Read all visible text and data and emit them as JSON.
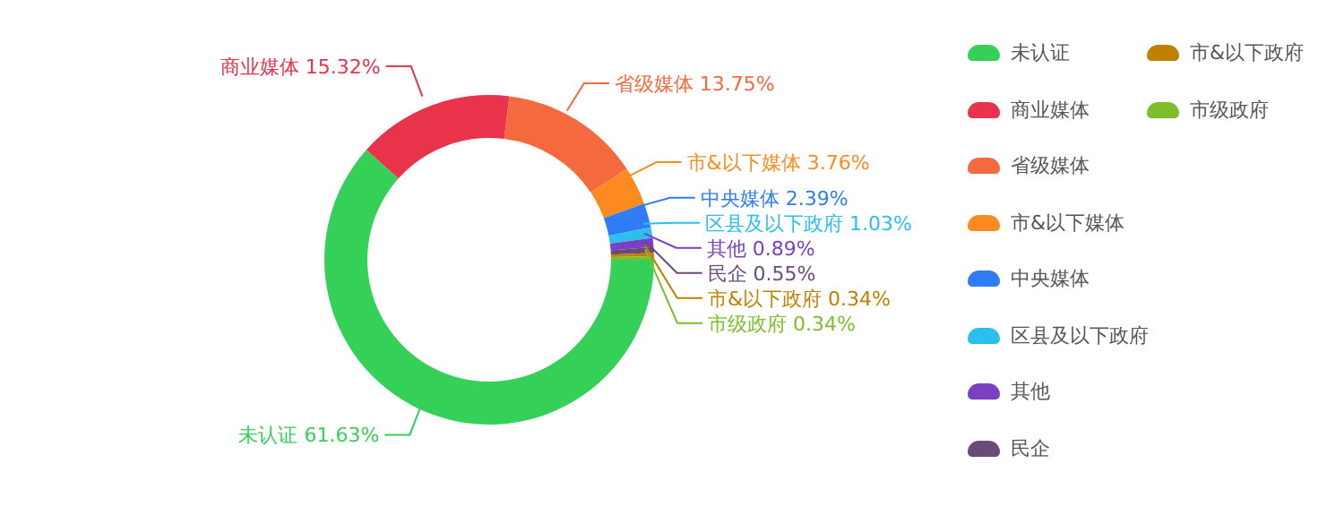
{
  "chart_data": {
    "type": "donut",
    "categories": [
      "未认证",
      "商业媒体",
      "省级媒体",
      "市&以下媒体",
      "中央媒体",
      "区县及以下政府",
      "其他",
      "民企",
      "市&以下政府",
      "市级政府"
    ],
    "values": [
      61.63,
      15.32,
      13.75,
      3.76,
      2.39,
      1.03,
      0.89,
      0.55,
      0.34,
      0.34
    ],
    "value_labels": [
      "61.63%",
      "15.32%",
      "13.75%",
      "3.76%",
      "2.39%",
      "1.03%",
      "0.89%",
      "0.55%",
      "0.34%",
      "0.34%"
    ],
    "colors": [
      "#34d058",
      "#e8334a",
      "#f5693f",
      "#ff8a1f",
      "#2f7cf6",
      "#2bbff0",
      "#7b3fc4",
      "#6a4a78",
      "#c08000",
      "#7cbf2a"
    ],
    "legend": "right"
  }
}
